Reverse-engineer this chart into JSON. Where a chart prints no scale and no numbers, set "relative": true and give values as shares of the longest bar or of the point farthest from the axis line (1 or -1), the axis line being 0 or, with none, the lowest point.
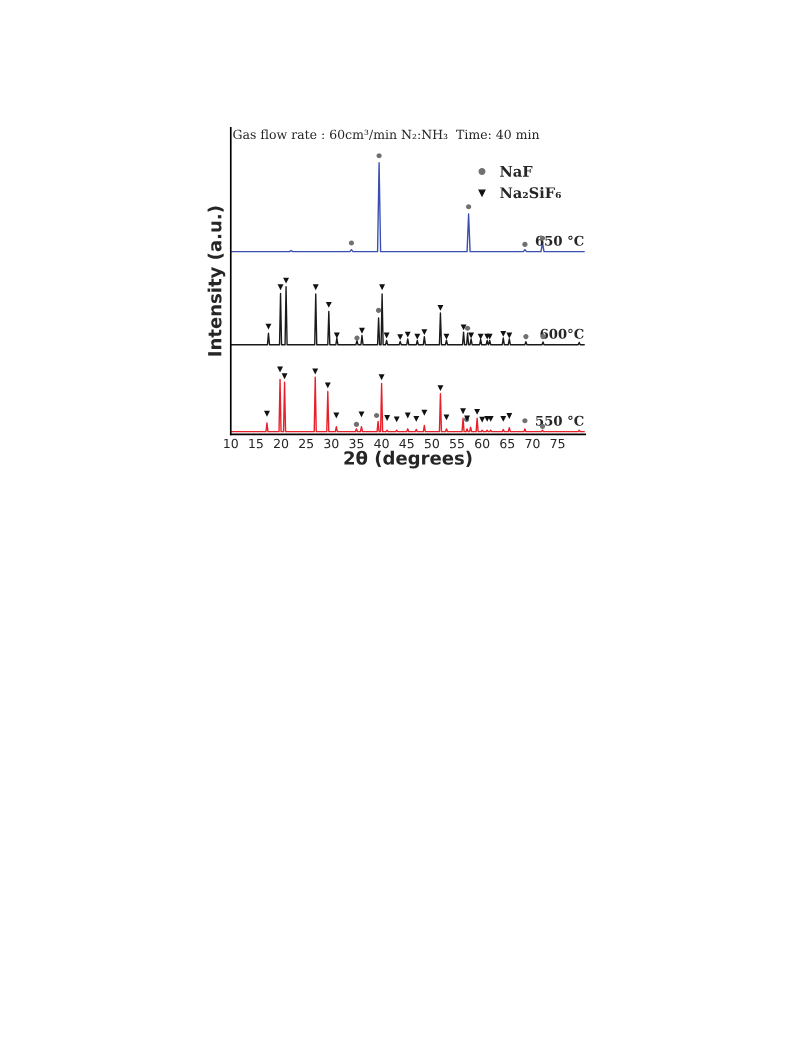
{
  "chart_data": {
    "type": "line",
    "title": "Gas flow rate : 60cm³/min N₂:NH₃  Time: 40 min",
    "xlabel": "2θ (degrees)",
    "ylabel": "Intensity (a.u.)",
    "relative": true,
    "xlim": [
      10,
      80.5
    ],
    "xticks": [
      10,
      15,
      20,
      25,
      30,
      35,
      40,
      45,
      50,
      55,
      60,
      65,
      70,
      75
    ],
    "grid": false,
    "legend": "top right",
    "marker": "none",
    "line_style": "solid",
    "series": [
      {
        "name": "650 °C",
        "color": "#3a4fb0",
        "x": [
          10,
          21.7,
          22,
          22.3,
          33.7,
          34.0,
          34.3,
          39.2,
          39.5,
          39.8,
          57.0,
          57.3,
          57.6,
          68.2,
          68.5,
          68.8,
          71.7,
          72.0,
          72.3,
          80.3
        ],
        "values": [
          0.656,
          0.656,
          0.66,
          0.656,
          0.656,
          0.663,
          0.656,
          0.656,
          0.975,
          0.656,
          0.656,
          0.791,
          0.656,
          0.656,
          0.663,
          0.656,
          0.656,
          0.687,
          0.656,
          0.656
        ]
      },
      {
        "name": "600°C",
        "color": "#1a1a1a",
        "x": [
          10,
          17.3,
          17.5,
          17.7,
          19.7,
          19.9,
          20.1,
          20.8,
          21.0,
          21.2,
          26.7,
          26.9,
          27.1,
          29.3,
          29.5,
          29.7,
          30.9,
          31.1,
          31.3,
          34.9,
          35.1,
          35.3,
          35.9,
          36.1,
          36.3,
          39.2,
          39.4,
          39.6,
          39.9,
          40.1,
          40.3,
          40.8,
          41.0,
          41.2,
          43.5,
          43.7,
          43.9,
          45.0,
          45.2,
          45.4,
          46.9,
          47.1,
          47.3,
          48.3,
          48.5,
          48.7,
          51.5,
          51.7,
          51.9,
          52.7,
          52.9,
          53.1,
          56.1,
          56.3,
          56.5,
          56.9,
          57.1,
          57.3,
          57.6,
          57.8,
          58.0,
          59.5,
          59.7,
          59.9,
          60.8,
          61.0,
          61.2,
          61.3,
          61.5,
          61.7,
          64.0,
          64.2,
          64.4,
          65.2,
          65.4,
          65.6,
          68.5,
          68.7,
          68.9,
          71.9,
          72.1,
          72.3,
          79.1,
          79.3,
          79.5,
          80.3
        ],
        "values": [
          0.322,
          0.322,
          0.363,
          0.322,
          0.322,
          0.506,
          0.322,
          0.322,
          0.53,
          0.322,
          0.322,
          0.504,
          0.322,
          0.322,
          0.441,
          0.322,
          0.322,
          0.346,
          0.322,
          0.322,
          0.337,
          0.322,
          0.322,
          0.355,
          0.322,
          0.322,
          0.418,
          0.322,
          0.322,
          0.504,
          0.322,
          0.322,
          0.337,
          0.322,
          0.322,
          0.334,
          0.322,
          0.322,
          0.343,
          0.322,
          0.322,
          0.337,
          0.322,
          0.322,
          0.351,
          0.322,
          0.322,
          0.436,
          0.322,
          0.322,
          0.338,
          0.322,
          0.322,
          0.367,
          0.322,
          0.322,
          0.363,
          0.322,
          0.322,
          0.343,
          0.322,
          0.322,
          0.341,
          0.322,
          0.322,
          0.337,
          0.322,
          0.322,
          0.337,
          0.322,
          0.322,
          0.346,
          0.322,
          0.322,
          0.343,
          0.322,
          0.322,
          0.333,
          0.322,
          0.322,
          0.332,
          0.322,
          0.322,
          0.33,
          0.322,
          0.322
        ]
      },
      {
        "name": "550 °C",
        "color": "#e8202a",
        "x": [
          10,
          17.0,
          17.2,
          17.4,
          19.6,
          19.8,
          20.0,
          20.5,
          20.7,
          20.9,
          26.6,
          26.8,
          27.0,
          29.1,
          29.3,
          29.5,
          30.8,
          31.0,
          31.2,
          34.8,
          35.0,
          35.2,
          35.8,
          36.0,
          36.2,
          39.1,
          39.3,
          39.5,
          39.8,
          40.0,
          40.2,
          40.9,
          41.1,
          41.3,
          42.8,
          43.0,
          43.2,
          45.0,
          45.2,
          45.4,
          46.7,
          46.9,
          47.1,
          48.3,
          48.5,
          48.7,
          51.5,
          51.7,
          51.9,
          52.7,
          52.9,
          53.1,
          56.0,
          56.2,
          56.4,
          56.8,
          57.0,
          57.2,
          57.5,
          57.7,
          57.9,
          58.8,
          59.0,
          59.2,
          59.8,
          60.0,
          60.2,
          60.8,
          61.0,
          61.2,
          61.5,
          61.7,
          61.9,
          64.0,
          64.2,
          64.4,
          65.2,
          65.4,
          65.6,
          68.3,
          68.5,
          68.7,
          71.8,
          72.0,
          72.2,
          79.1,
          79.3,
          79.5,
          80.3
        ],
        "values": [
          0.01,
          0.01,
          0.041,
          0.01,
          0.01,
          0.197,
          0.01,
          0.01,
          0.187,
          0.01,
          0.01,
          0.205,
          0.01,
          0.01,
          0.154,
          0.01,
          0.01,
          0.028,
          0.01,
          0.01,
          0.02,
          0.01,
          0.01,
          0.028,
          0.01,
          0.01,
          0.047,
          0.01,
          0.01,
          0.183,
          0.01,
          0.01,
          0.015,
          0.01,
          0.01,
          0.015,
          0.01,
          0.01,
          0.02,
          0.01,
          0.01,
          0.018,
          0.01,
          0.01,
          0.032,
          0.01,
          0.01,
          0.146,
          0.01,
          0.01,
          0.02,
          0.01,
          0.01,
          0.058,
          0.01,
          0.01,
          0.02,
          0.01,
          0.01,
          0.026,
          0.01,
          0.01,
          0.058,
          0.01,
          0.01,
          0.015,
          0.01,
          0.01,
          0.015,
          0.01,
          0.01,
          0.015,
          0.01,
          0.01,
          0.018,
          0.01,
          0.01,
          0.024,
          0.01,
          0.01,
          0.02,
          0.01,
          0.01,
          0.015,
          0.01,
          0.01,
          0.015,
          0.01,
          0.01
        ]
      },
      {
        "name": "NaF",
        "type": "scatter",
        "marker": "circle",
        "color": "#707070",
        "x": [
          34.0,
          39.5,
          57.3,
          68.5,
          72.0,
          35.1,
          39.4,
          57.1,
          68.7,
          72.1,
          35.0,
          39.0,
          56.9,
          68.5,
          72.0
        ],
        "values": [
          0.687,
          1.0,
          0.817,
          0.682,
          0.704,
          0.346,
          0.445,
          0.381,
          0.351,
          0.351,
          0.036,
          0.068,
          0.054,
          0.049,
          0.029
        ]
      },
      {
        "name": "Na₂SiF₆",
        "type": "scatter",
        "marker": "triangle",
        "color": "#111111",
        "x": [
          17.5,
          19.9,
          21.0,
          26.9,
          29.5,
          31.1,
          36.1,
          40.1,
          41.0,
          43.7,
          45.2,
          47.1,
          48.5,
          51.7,
          52.9,
          56.3,
          57.8,
          59.7,
          61.0,
          61.5,
          64.2,
          65.4,
          17.2,
          19.8,
          20.7,
          26.8,
          29.3,
          31.0,
          36.0,
          40.0,
          41.1,
          43.0,
          45.2,
          46.9,
          48.5,
          51.7,
          52.9,
          56.2,
          57.0,
          59.0,
          60.0,
          61.0,
          61.7,
          64.2,
          65.4
        ],
        "values": [
          0.387,
          0.528,
          0.552,
          0.528,
          0.465,
          0.355,
          0.372,
          0.528,
          0.355,
          0.349,
          0.358,
          0.351,
          0.367,
          0.454,
          0.351,
          0.384,
          0.355,
          0.351,
          0.351,
          0.351,
          0.361,
          0.355,
          0.074,
          0.233,
          0.209,
          0.226,
          0.176,
          0.068,
          0.072,
          0.205,
          0.059,
          0.054,
          0.068,
          0.056,
          0.078,
          0.166,
          0.061,
          0.083,
          0.057,
          0.081,
          0.053,
          0.056,
          0.056,
          0.056,
          0.066
        ]
      }
    ]
  }
}
